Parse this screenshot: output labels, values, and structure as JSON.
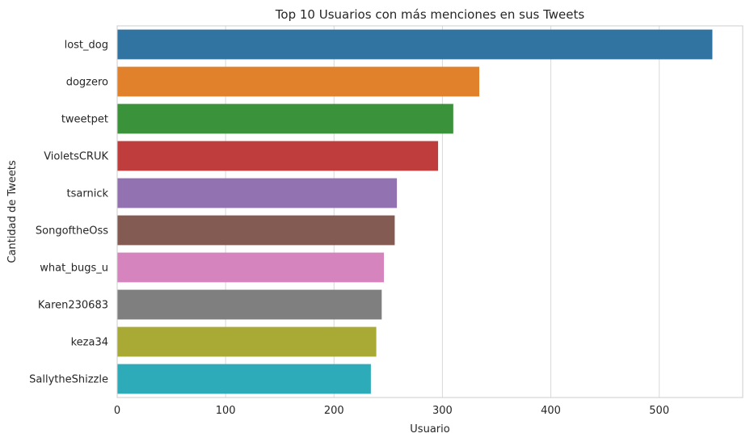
{
  "chart_data": {
    "type": "bar",
    "orientation": "horizontal",
    "title": "Top 10 Usuarios con más menciones en sus Tweets",
    "xlabel": "Usuario",
    "ylabel": "Cantidad de Tweets",
    "categories": [
      "lost_dog",
      "dogzero",
      "tweetpet",
      "VioletsCRUK",
      "tsarnick",
      "SongoftheOss",
      "what_bugs_u",
      "Karen230683",
      "keza34",
      "SallytheShizzle"
    ],
    "values": [
      549,
      334,
      310,
      296,
      258,
      256,
      246,
      244,
      239,
      234
    ],
    "colors": [
      "#3274a1",
      "#e1812c",
      "#3a923a",
      "#c03d3e",
      "#9372b2",
      "#845b53",
      "#d684bd",
      "#7f7f7f",
      "#a9aa35",
      "#2eabb8"
    ],
    "xlim": [
      0,
      577
    ],
    "xticks": [
      0,
      100,
      200,
      300,
      400,
      500
    ],
    "grid": "vertical",
    "legend": "none"
  }
}
